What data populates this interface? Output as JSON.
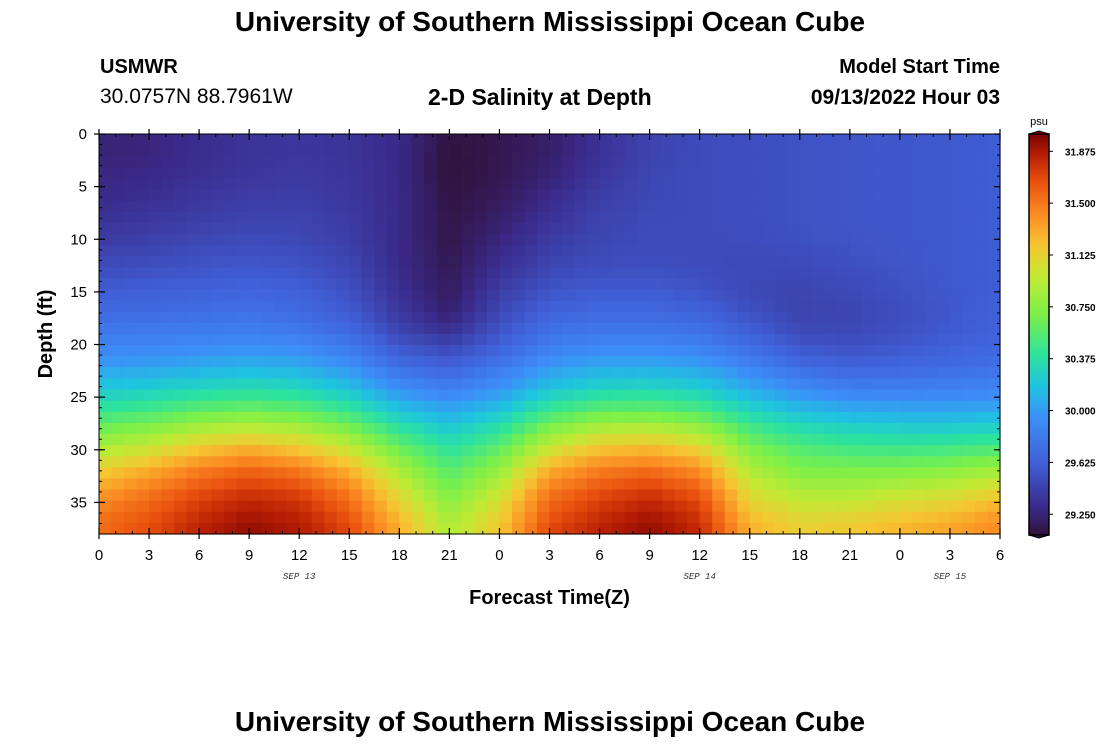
{
  "header": {
    "title": "University of Southern Mississippi Ocean Cube",
    "station": "USMWR",
    "coords": "30.0757N  88.7961W",
    "plot_title": "2-D Salinity at Depth",
    "model_start_label": "Model Start Time",
    "model_start_value": "09/13/2022 Hour 03"
  },
  "footer": {
    "title": "University of Southern Mississippi Ocean Cube"
  },
  "chart_data": {
    "type": "heatmap",
    "title": "2-D Salinity at Depth",
    "xlabel": "Forecast Time(Z)",
    "ylabel": "Depth (ft)",
    "x_unit": "hours since 09/13 00Z",
    "x_range": [
      0,
      54
    ],
    "x_ticks": [
      0,
      3,
      6,
      9,
      12,
      15,
      18,
      21,
      24,
      27,
      30,
      33,
      36,
      39,
      42,
      45,
      48,
      51,
      54
    ],
    "x_tick_labels": [
      "0",
      "3",
      "6",
      "9",
      "12",
      "15",
      "18",
      "21",
      "0",
      "3",
      "6",
      "9",
      "12",
      "15",
      "18",
      "21",
      "0",
      "3",
      "6"
    ],
    "date_labels": [
      {
        "hour": 12,
        "text": "SEP 13"
      },
      {
        "hour": 36,
        "text": "SEP 14"
      },
      {
        "hour": 51,
        "text": "SEP 15"
      }
    ],
    "y_range": [
      0,
      38
    ],
    "y_ticks": [
      0,
      5,
      10,
      15,
      20,
      25,
      30,
      35
    ],
    "y_tick_labels": [
      "0",
      "5",
      "10",
      "15",
      "20",
      "25",
      "30",
      "35"
    ],
    "colorbar": {
      "unit": "psu",
      "min": 29.1,
      "max": 32.0,
      "tick_values": [
        31.875,
        31.5,
        31.125,
        30.75,
        30.375,
        30.0,
        29.625,
        29.25
      ],
      "tick_labels": [
        "31.875",
        "31.500",
        "31.125",
        "30.750",
        "30.375",
        "30.000",
        "29.625",
        "29.250"
      ]
    },
    "grid_x_hours": [
      0,
      3,
      6,
      9,
      12,
      15,
      18,
      21,
      24,
      27,
      30,
      33,
      36,
      39,
      42,
      45,
      48,
      51,
      54
    ],
    "grid_depth_ft": [
      0,
      2,
      4,
      6,
      8,
      10,
      12,
      14,
      16,
      18,
      20,
      22,
      24,
      26,
      28,
      30,
      32,
      34,
      36,
      38
    ],
    "salinity_psu": [
      [
        29.25,
        29.27,
        29.32,
        29.36,
        29.38,
        29.36,
        29.3,
        29.12,
        29.15,
        29.22,
        29.35,
        29.45,
        29.5,
        29.52,
        29.54,
        29.56,
        29.57,
        29.58,
        29.6
      ],
      [
        29.25,
        29.27,
        29.32,
        29.36,
        29.38,
        29.36,
        29.3,
        29.1,
        29.15,
        29.22,
        29.35,
        29.45,
        29.5,
        29.52,
        29.54,
        29.56,
        29.57,
        29.58,
        29.6
      ],
      [
        29.28,
        29.3,
        29.34,
        29.38,
        29.4,
        29.37,
        29.3,
        29.1,
        29.16,
        29.25,
        29.38,
        29.47,
        29.5,
        29.52,
        29.54,
        29.56,
        29.57,
        29.58,
        29.6
      ],
      [
        29.3,
        29.33,
        29.38,
        29.41,
        29.42,
        29.38,
        29.3,
        29.12,
        29.18,
        29.3,
        29.42,
        29.48,
        29.5,
        29.52,
        29.54,
        29.56,
        29.57,
        29.58,
        29.6
      ],
      [
        29.35,
        29.38,
        29.42,
        29.45,
        29.45,
        29.4,
        29.3,
        29.13,
        29.22,
        29.35,
        29.45,
        29.49,
        29.5,
        29.52,
        29.54,
        29.56,
        29.57,
        29.58,
        29.6
      ],
      [
        29.4,
        29.43,
        29.47,
        29.5,
        29.48,
        29.42,
        29.3,
        29.14,
        29.27,
        29.4,
        29.47,
        29.5,
        29.5,
        29.51,
        29.53,
        29.55,
        29.57,
        29.58,
        29.6
      ],
      [
        29.48,
        29.5,
        29.53,
        29.55,
        29.53,
        29.46,
        29.3,
        29.16,
        29.32,
        29.45,
        29.5,
        29.51,
        29.5,
        29.49,
        29.5,
        29.53,
        29.56,
        29.58,
        29.6
      ],
      [
        29.56,
        29.58,
        29.6,
        29.62,
        29.6,
        29.5,
        29.32,
        29.18,
        29.38,
        29.52,
        29.56,
        29.56,
        29.53,
        29.48,
        29.47,
        29.5,
        29.54,
        29.58,
        29.6
      ],
      [
        29.65,
        29.66,
        29.68,
        29.7,
        29.66,
        29.56,
        29.36,
        29.2,
        29.45,
        29.6,
        29.64,
        29.64,
        29.6,
        29.5,
        29.45,
        29.47,
        29.52,
        29.57,
        29.62
      ],
      [
        29.75,
        29.76,
        29.78,
        29.8,
        29.75,
        29.64,
        29.42,
        29.28,
        29.52,
        29.7,
        29.74,
        29.74,
        29.7,
        29.58,
        29.47,
        29.47,
        29.52,
        29.58,
        29.63
      ],
      [
        29.86,
        29.88,
        29.9,
        29.92,
        29.9,
        29.78,
        29.55,
        29.45,
        29.62,
        29.82,
        29.88,
        29.88,
        29.84,
        29.7,
        29.55,
        29.52,
        29.56,
        29.62,
        29.66
      ],
      [
        30.0,
        30.02,
        30.06,
        30.1,
        30.06,
        29.95,
        29.72,
        29.62,
        29.78,
        29.98,
        30.05,
        30.06,
        30.02,
        29.86,
        29.7,
        29.64,
        29.66,
        29.7,
        29.74
      ],
      [
        30.18,
        30.22,
        30.28,
        30.32,
        30.28,
        30.15,
        29.92,
        29.82,
        29.95,
        30.16,
        30.26,
        30.28,
        30.22,
        30.05,
        29.9,
        29.82,
        29.82,
        29.84,
        29.86
      ],
      [
        30.4,
        30.45,
        30.55,
        30.6,
        30.55,
        30.4,
        30.15,
        30.02,
        30.15,
        30.42,
        30.55,
        30.56,
        30.48,
        30.26,
        30.12,
        30.05,
        30.02,
        30.02,
        30.04
      ],
      [
        30.65,
        30.74,
        30.88,
        30.95,
        30.88,
        30.7,
        30.4,
        30.22,
        30.38,
        30.72,
        30.9,
        30.92,
        30.82,
        30.5,
        30.35,
        30.28,
        30.25,
        30.25,
        30.28
      ],
      [
        30.9,
        31.02,
        31.2,
        31.3,
        31.2,
        31.0,
        30.65,
        30.4,
        30.6,
        31.02,
        31.22,
        31.26,
        31.14,
        30.72,
        30.55,
        30.5,
        30.48,
        30.5,
        30.55
      ],
      [
        31.15,
        31.3,
        31.48,
        31.58,
        31.5,
        31.28,
        30.88,
        30.55,
        30.8,
        31.3,
        31.48,
        31.55,
        31.42,
        30.9,
        30.72,
        30.7,
        30.72,
        30.76,
        30.85
      ],
      [
        31.35,
        31.5,
        31.66,
        31.76,
        31.7,
        31.48,
        31.05,
        30.68,
        30.98,
        31.5,
        31.66,
        31.75,
        31.62,
        31.05,
        30.88,
        30.88,
        30.95,
        31.0,
        31.12
      ],
      [
        31.5,
        31.62,
        31.78,
        31.88,
        31.82,
        31.62,
        31.2,
        30.82,
        31.12,
        31.62,
        31.78,
        31.88,
        31.75,
        31.2,
        31.05,
        31.08,
        31.15,
        31.22,
        31.35
      ],
      [
        31.55,
        31.68,
        31.85,
        31.95,
        31.88,
        31.7,
        31.3,
        30.9,
        31.2,
        31.7,
        31.85,
        31.95,
        31.82,
        31.3,
        31.15,
        31.2,
        31.28,
        31.35,
        31.45
      ]
    ]
  }
}
